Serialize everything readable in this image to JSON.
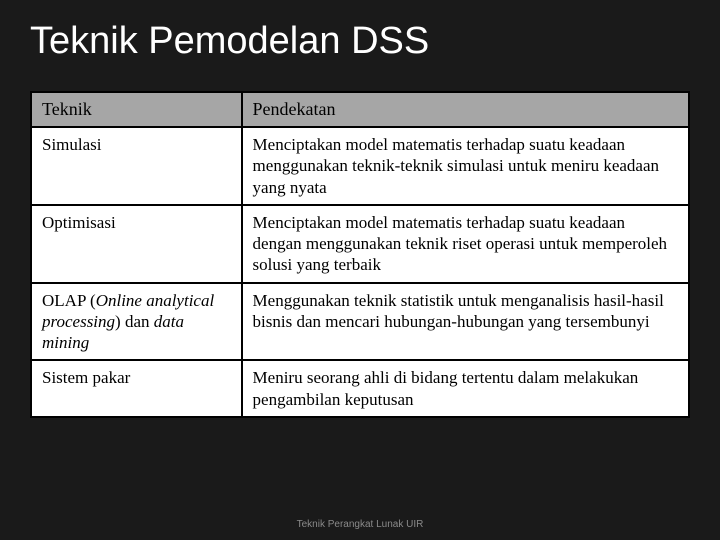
{
  "title": "Teknik Pemodelan DSS",
  "table": {
    "columns": [
      "Teknik",
      "Pendekatan"
    ],
    "column_widths": [
      "32%",
      "68%"
    ],
    "header_bg": "#a6a6a6",
    "header_color": "#000000",
    "cell_bg": "#ffffff",
    "cell_color": "#000000",
    "border_color": "#000000",
    "rows": [
      {
        "teknik_parts": [
          {
            "text": "Simulasi",
            "italic": false
          }
        ],
        "pendekatan": "Menciptakan model matematis terhadap suatu keadaan menggunakan teknik-teknik simulasi untuk meniru keadaan yang nyata"
      },
      {
        "teknik_parts": [
          {
            "text": "Optimisasi",
            "italic": false
          }
        ],
        "pendekatan": "Menciptakan model matematis terhadap suatu keadaan dengan menggunakan teknik riset operasi untuk memperoleh solusi yang terbaik"
      },
      {
        "teknik_parts": [
          {
            "text": "OLAP (",
            "italic": false
          },
          {
            "text": "Online analytical processing",
            "italic": true
          },
          {
            "text": ") dan ",
            "italic": false
          },
          {
            "text": "data mining",
            "italic": true
          }
        ],
        "pendekatan": "Menggunakan teknik statistik untuk menganalisis hasil-hasil bisnis dan mencari hubungan-hubungan yang tersembunyi"
      },
      {
        "teknik_parts": [
          {
            "text": "Sistem pakar",
            "italic": false
          }
        ],
        "pendekatan": "Meniru seorang ahli di bidang tertentu dalam melakukan pengambilan keputusan"
      }
    ]
  },
  "footer": "Teknik Perangkat Lunak UIR",
  "colors": {
    "background": "#1a1a1a",
    "title_color": "#ffffff",
    "footer_color": "#8a8a8a"
  },
  "typography": {
    "title_fontsize": 38,
    "header_fontsize": 18,
    "cell_fontsize": 17,
    "footer_fontsize": 10
  }
}
